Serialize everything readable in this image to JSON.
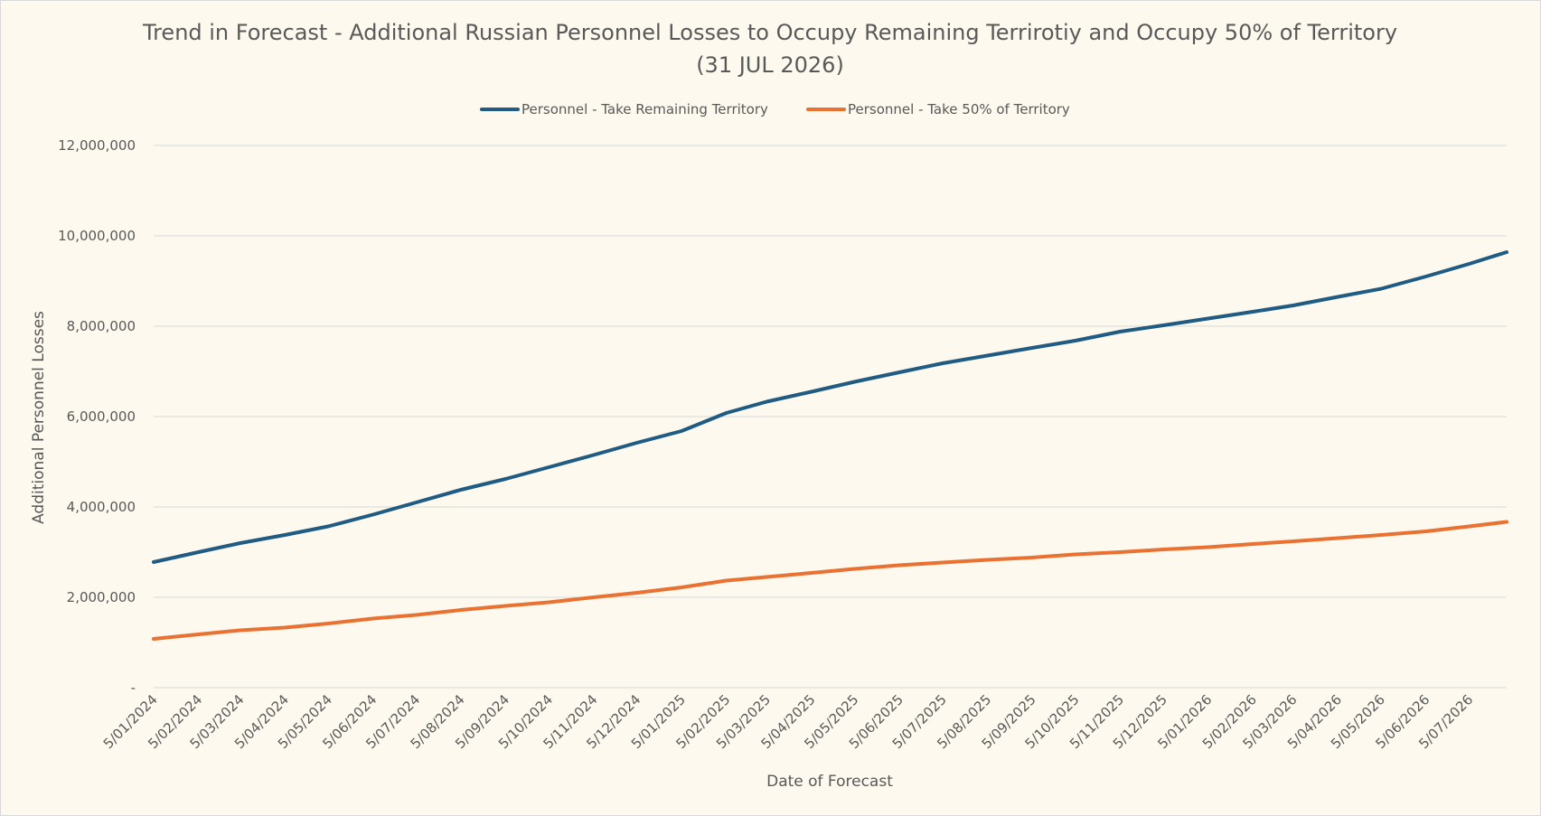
{
  "chart_data": {
    "type": "line",
    "title_lines": [
      "Trend in Forecast - Additional Russian Personnel Losses to Occupy Remaining Terrirotiy and Occupy 50% of Territory",
      "(31 JUL 2026)"
    ],
    "xlabel": "Date of Forecast",
    "ylabel": "Additional Personnel Losses",
    "ylim": [
      0,
      12000000
    ],
    "yticks": [
      {
        "value": 0,
        "label": "-"
      },
      {
        "value": 2000000,
        "label": "2,000,000"
      },
      {
        "value": 4000000,
        "label": "4,000,000"
      },
      {
        "value": 6000000,
        "label": "6,000,000"
      },
      {
        "value": 8000000,
        "label": "8,000,000"
      },
      {
        "value": 10000000,
        "label": "10,000,000"
      },
      {
        "value": 12000000,
        "label": "12,000,000"
      }
    ],
    "xlim": [
      "5/01/2024",
      "31/07/2026"
    ],
    "xticks": [
      "5/01/2024",
      "5/02/2024",
      "5/03/2024",
      "5/04/2024",
      "5/05/2024",
      "5/06/2024",
      "5/07/2024",
      "5/08/2024",
      "5/09/2024",
      "5/10/2024",
      "5/11/2024",
      "5/12/2024",
      "5/01/2025",
      "5/02/2025",
      "5/03/2025",
      "5/04/2025",
      "5/05/2025",
      "5/06/2025",
      "5/07/2025",
      "5/08/2025",
      "5/09/2025",
      "5/10/2025",
      "5/11/2025",
      "5/12/2025",
      "5/01/2026",
      "5/02/2026",
      "5/03/2026",
      "5/04/2026",
      "5/05/2026",
      "5/06/2026",
      "5/07/2026"
    ],
    "grid": "horizontal",
    "legend_position": "top",
    "series": [
      {
        "name": "Personnel - Take Remaining Territory",
        "color": "#1f5b82",
        "x": [
          "5/01/2024",
          "5/02/2024",
          "5/03/2024",
          "5/04/2024",
          "5/05/2024",
          "5/06/2024",
          "5/07/2024",
          "5/08/2024",
          "5/09/2024",
          "5/10/2024",
          "5/11/2024",
          "5/12/2024",
          "5/01/2025",
          "5/02/2025",
          "5/03/2025",
          "5/04/2025",
          "5/05/2025",
          "5/06/2025",
          "5/07/2025",
          "5/08/2025",
          "5/09/2025",
          "5/10/2025",
          "5/11/2025",
          "5/12/2025",
          "5/01/2026",
          "5/02/2026",
          "5/03/2026",
          "5/04/2026",
          "5/05/2026",
          "5/06/2026",
          "5/07/2026",
          "31/07/2026"
        ],
        "values": [
          2780000,
          3000000,
          3200000,
          3380000,
          3570000,
          3830000,
          4100000,
          4380000,
          4620000,
          4880000,
          5150000,
          5420000,
          5680000,
          6080000,
          6330000,
          6550000,
          6770000,
          6980000,
          7180000,
          7350000,
          7520000,
          7680000,
          7880000,
          8020000,
          8170000,
          8320000,
          8460000,
          8650000,
          8830000,
          9100000,
          9380000,
          9640000
        ]
      },
      {
        "name": "Personnel - Take 50% of Territory",
        "color": "#e97132",
        "x": [
          "5/01/2024",
          "5/02/2024",
          "5/03/2024",
          "5/04/2024",
          "5/05/2024",
          "5/06/2024",
          "5/07/2024",
          "5/08/2024",
          "5/09/2024",
          "5/10/2024",
          "5/11/2024",
          "5/12/2024",
          "5/01/2025",
          "5/02/2025",
          "5/03/2025",
          "5/04/2025",
          "5/05/2025",
          "5/06/2025",
          "5/07/2025",
          "5/08/2025",
          "5/09/2025",
          "5/10/2025",
          "5/11/2025",
          "5/12/2025",
          "5/01/2026",
          "5/02/2026",
          "5/03/2026",
          "5/04/2026",
          "5/05/2026",
          "5/06/2026",
          "5/07/2026",
          "31/07/2026"
        ],
        "values": [
          1080000,
          1180000,
          1270000,
          1330000,
          1420000,
          1530000,
          1610000,
          1720000,
          1810000,
          1890000,
          2000000,
          2100000,
          2220000,
          2370000,
          2450000,
          2540000,
          2630000,
          2710000,
          2770000,
          2830000,
          2880000,
          2950000,
          3000000,
          3060000,
          3110000,
          3180000,
          3240000,
          3310000,
          3380000,
          3460000,
          3570000,
          3670000
        ]
      }
    ]
  }
}
